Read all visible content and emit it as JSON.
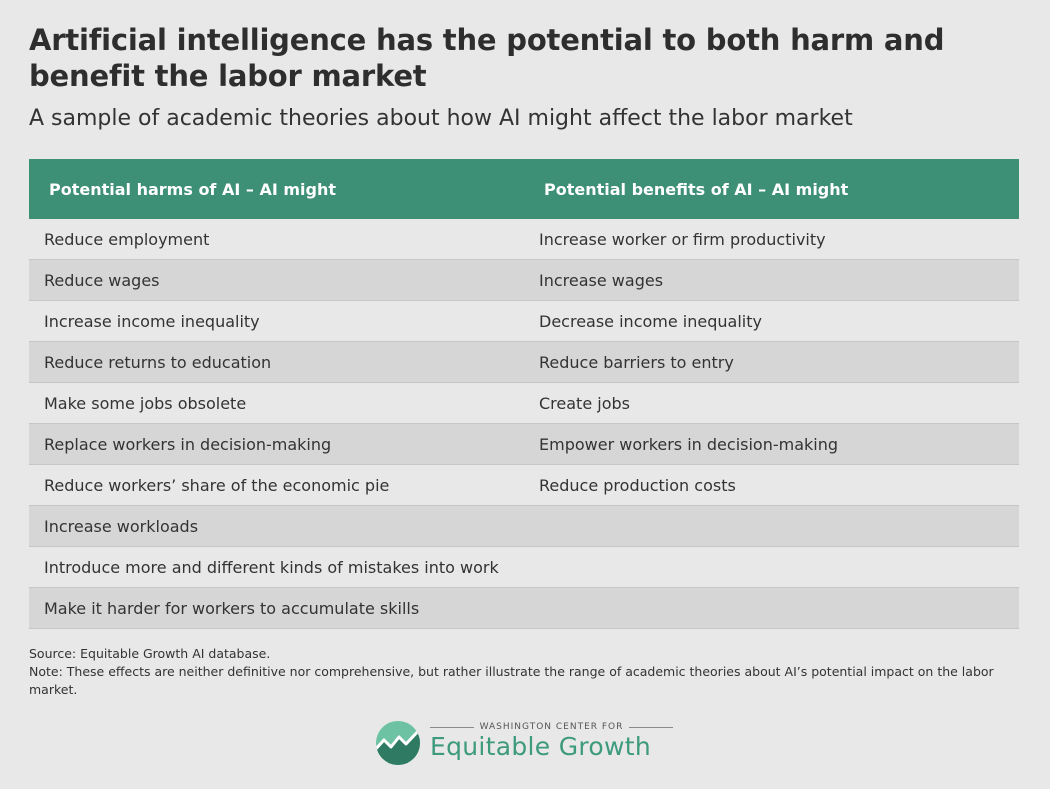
{
  "title": "Artificial intelligence has the potential to both harm and benefit the labor market",
  "subtitle": "A sample of academic theories about how AI might affect the labor market",
  "table": {
    "header_left": "Potential harms of AI – AI might",
    "header_right": "Potential benefits of AI – AI might",
    "rows": [
      {
        "left": "Reduce employment",
        "right": "Increase worker or firm productivity"
      },
      {
        "left": "Reduce wages",
        "right": "Increase wages"
      },
      {
        "left": "Increase income inequality",
        "right": "Decrease income inequality"
      },
      {
        "left": "Reduce returns to education",
        "right": "Reduce barriers to entry"
      },
      {
        "left": "Make some jobs obsolete",
        "right": "Create jobs"
      },
      {
        "left": "Replace workers in decision-making",
        "right": "Empower workers in decision-making"
      },
      {
        "left": "Reduce workers’ share of the economic pie",
        "right": "Reduce production costs"
      },
      {
        "left": "Increase workloads",
        "right": ""
      },
      {
        "left": "Introduce more and different kinds of mistakes into work",
        "right": ""
      },
      {
        "left": "Make it harder for workers to accumulate skills",
        "right": ""
      }
    ]
  },
  "source": "Source: Equitable Growth AI database.",
  "note": "Note: These effects are neither definitive nor comprehensive, but rather illustrate the range of academic theories about AI’s potential impact on the labor market.",
  "logo": {
    "small_text": "WASHINGTON CENTER FOR",
    "big_text": "Equitable Growth"
  },
  "colors": {
    "header_bg": "#3d8f75",
    "page_bg": "#e8e8e8",
    "alt_row_bg": "#d6d6d6",
    "logo_green": "#3d9a7d"
  }
}
